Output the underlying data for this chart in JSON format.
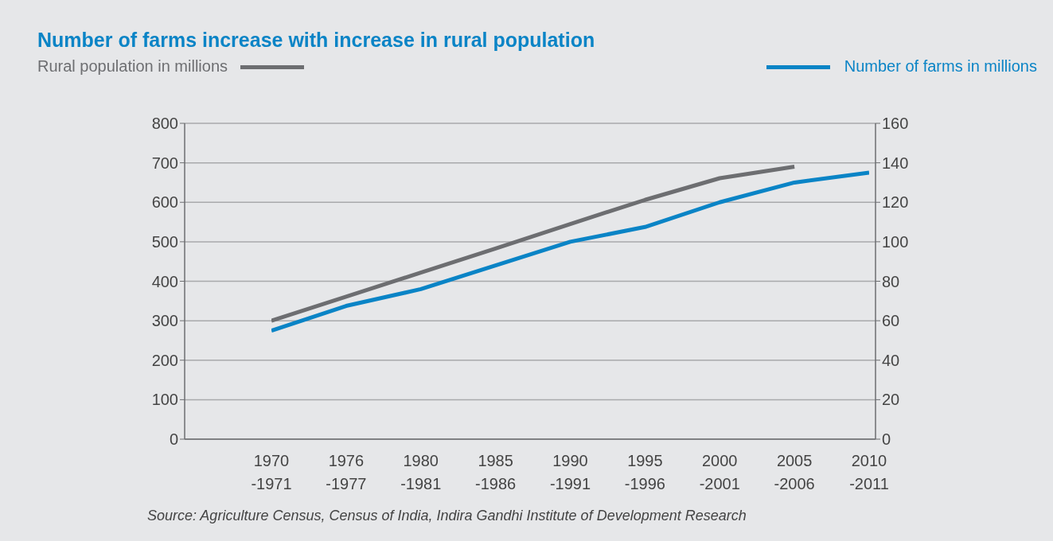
{
  "chart_data": {
    "type": "line",
    "title": "Number of farms increase with increase in rural population",
    "categories": [
      "1970 -1971",
      "1976 -1977",
      "1980 -1981",
      "1985 -1986",
      "1990 -1991",
      "1995 -1996",
      "2000 -2001",
      "2005 -2006",
      "2010 -2011"
    ],
    "series": [
      {
        "name": "Rural population in millions",
        "color": "#6d6e71",
        "values": [
          300,
          361,
          422,
          483,
          545,
          606,
          661,
          690,
          null
        ]
      },
      {
        "name": "Number of farms in millions",
        "color": "#0a84c6",
        "axis": "y2",
        "values": [
          55,
          67.5,
          76,
          88,
          100,
          107.5,
          120,
          130,
          135
        ]
      }
    ],
    "ylim": [
      0,
      800
    ],
    "yticks": [
      0,
      100,
      200,
      300,
      400,
      500,
      600,
      700,
      800
    ],
    "y2lim": [
      0,
      160
    ],
    "y2ticks": [
      0,
      20,
      40,
      60,
      80,
      100,
      120,
      140,
      160
    ],
    "grid": "y",
    "legend": "top",
    "marker": "none",
    "line_style": "solid",
    "annotations": [
      "Source: Agriculture Census, Census of India, Indira Gandhi Institute of Development Research"
    ]
  }
}
